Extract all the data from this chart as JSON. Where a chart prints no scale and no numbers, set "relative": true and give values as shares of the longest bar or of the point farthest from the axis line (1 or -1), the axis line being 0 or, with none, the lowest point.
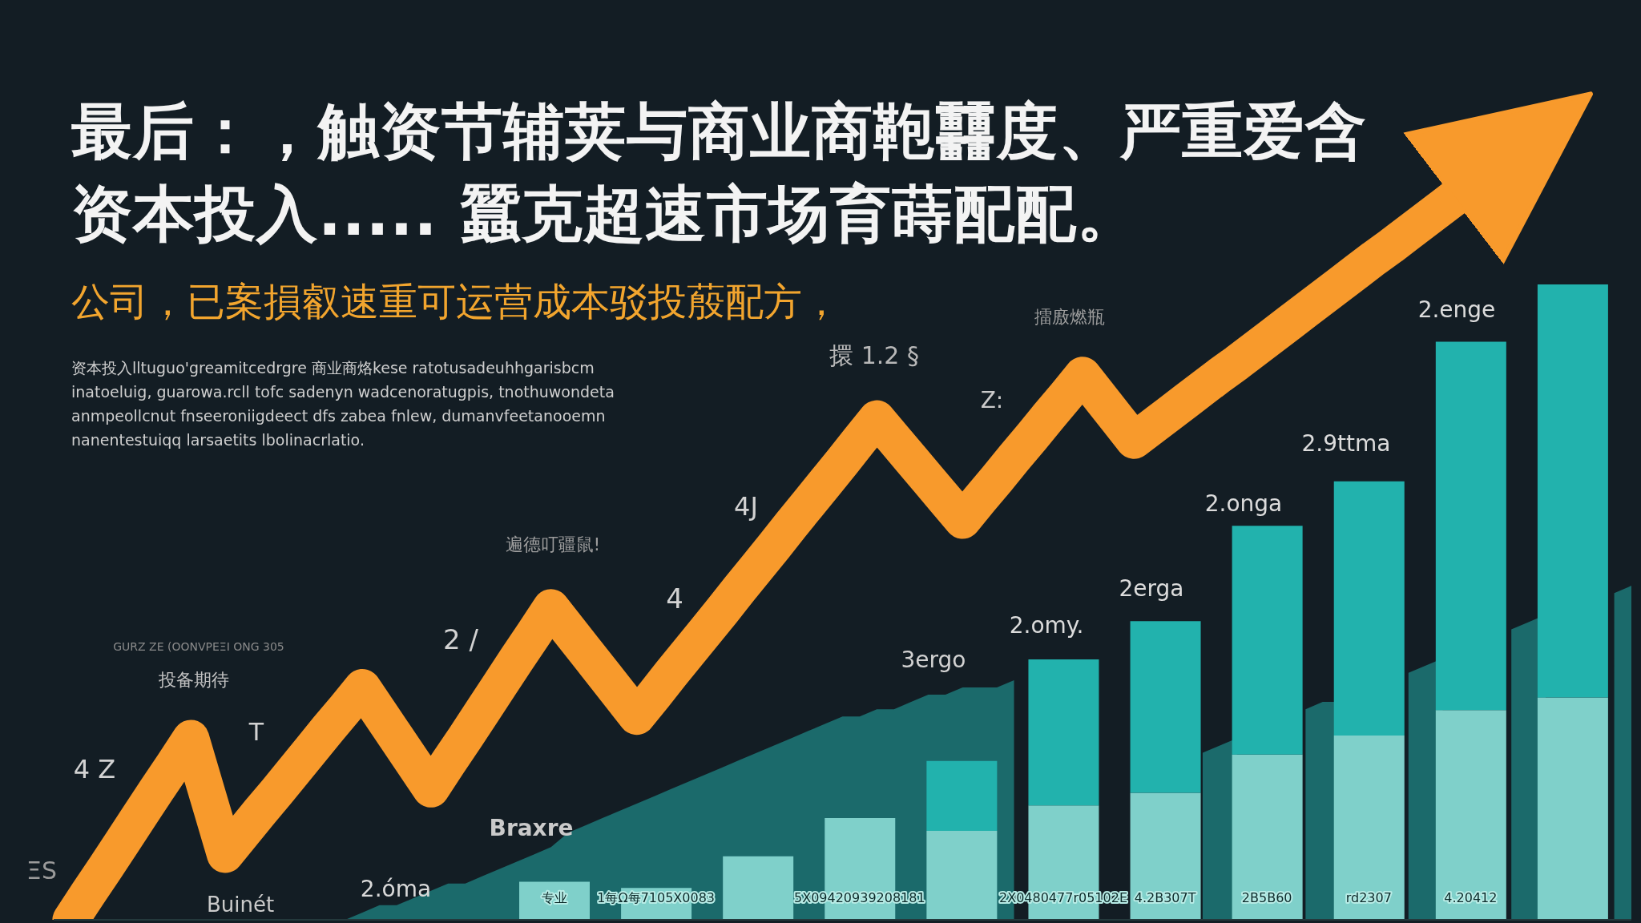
{
  "chart_data": [
    {
      "type": "bar",
      "title": "最后：，触资节辅荚与商业商鞄䨻度、严重爱含资本投入..... 蠶克超速市场育蒔配配。",
      "subtitle": "公司，已案損叡速重可运营成本驳投蒑配方，",
      "annotations": [
        "资本投入lltuguo'greamitcedrgre 商业商烙kese ratotusadeuhhgarisbcm",
        "inatoeluig, guarowa.rcll tofc sadenyn wadcenoratugpis, tnothuwondeta",
        "anmpeollcnut fnseeroniigdeect dfs zabea fnlew, dumanvfeetanooemn",
        "nanentestuiqq larsaetits lbolinacrlatio.",
        "擐 1.2 §",
        "擂廒燃瓶",
        "Z:",
        "4J",
        "遍德叮疆鼠!",
        "4",
        "2 /",
        "GURZ ZE (OONVPEΞI ONG 305",
        "投备期待",
        "T",
        "4 Z",
        "ΞS",
        "Braxre",
        "2.óma",
        "Buinét",
        "3ergo",
        "2.omy.",
        "2erga",
        "2.onga",
        "2.9ttma",
        "2.enge"
      ],
      "relative": true,
      "stacked": true,
      "tick_labels": "x",
      "categories": [
        "专业",
        "1每Ω每7105X0083",
        null,
        "5X09420939208181",
        null,
        "2X0480477r05102E",
        "4.2B307T",
        "2B5B60",
        "rd2307",
        "4.20412",
        null
      ],
      "series": [
        {
          "color": "#7fd0ca",
          "values": [
            0.06,
            0.05,
            0.1,
            0.16,
            0.14,
            0.18,
            0.2,
            0.26,
            0.29,
            0.33,
            0.35
          ]
        },
        {
          "color": "#22b2ad",
          "values": [
            null,
            null,
            null,
            null,
            0.11,
            0.23,
            0.27,
            0.36,
            0.4,
            0.58,
            0.65
          ]
        }
      ]
    },
    {
      "type": "line",
      "relative": true,
      "tick_labels": false,
      "categories": [
        null,
        null,
        null,
        null,
        null,
        null,
        null,
        null,
        null,
        null,
        null,
        null,
        null,
        null,
        null,
        null,
        null,
        null,
        null,
        null,
        null,
        null,
        null,
        null,
        null,
        null,
        null,
        null,
        null,
        null,
        null,
        null,
        null,
        null,
        null,
        null,
        null,
        null,
        null,
        null,
        null,
        null,
        null,
        null,
        null,
        null,
        null,
        null,
        null,
        null,
        null,
        null,
        null,
        null,
        null,
        null,
        null,
        null,
        null,
        null,
        null,
        null,
        null,
        null,
        null,
        null,
        null,
        null,
        null,
        null,
        null,
        null,
        null,
        null,
        null,
        null,
        null,
        null,
        null,
        null,
        null,
        null,
        null,
        null,
        null,
        null,
        null,
        null,
        null,
        null,
        null,
        null,
        null
      ],
      "series": [
        {
          "type": "area",
          "color": "#1b6a6b",
          "values": [
            null,
            null,
            null,
            null,
            null,
            null,
            null,
            null,
            null,
            null,
            null,
            null,
            null,
            null,
            null,
            null,
            null,
            0,
            0.01,
            0.02,
            0.02,
            0.03,
            0.04,
            0.05,
            0.05,
            0.06,
            0.07,
            0.08,
            0.09,
            0.1,
            0.12,
            0.13,
            0.14,
            0.15,
            0.16,
            0.17,
            0.18,
            0.19,
            0.2,
            0.21,
            0.22,
            0.23,
            0.24,
            0.25,
            0.26,
            0.27,
            0.28,
            0.28,
            0.29,
            0.29,
            0.3,
            0.31,
            0.31,
            0.32,
            0.32,
            0.32,
            0.33,
            null,
            null,
            null,
            null,
            null,
            null,
            null,
            null,
            null,
            null,
            0.23,
            0.24,
            0.25,
            null,
            null,
            null,
            0.29,
            0.3,
            0.3,
            null,
            null,
            null,
            0.34,
            0.35,
            0.36,
            null,
            null,
            null,
            0.4,
            0.41,
            0.42,
            null,
            null,
            null,
            0.45,
            0.46
          ]
        },
        {
          "color": "#f89a2c",
          "values": [
            null,
            0,
            0.036,
            0.071,
            0.107,
            0.143,
            0.179,
            0.214,
            0.25,
            0.17,
            0.09,
            0.119,
            0.148,
            0.176,
            0.205,
            0.234,
            0.263,
            0.291,
            0.32,
            0.285,
            0.25,
            0.215,
            0.18,
            0.216,
            0.251,
            0.287,
            0.323,
            0.359,
            0.394,
            0.43,
            0.4,
            0.37,
            0.34,
            0.31,
            0.28,
            0.309,
            0.339,
            0.368,
            0.397,
            0.426,
            0.456,
            0.485,
            0.514,
            0.544,
            0.573,
            0.602,
            0.631,
            0.661,
            0.69,
            0.662,
            0.634,
            0.606,
            0.578,
            0.55,
            0.579,
            0.607,
            0.636,
            0.664,
            0.693,
            0.721,
            0.75,
            0.72,
            0.69,
            0.66,
            0.678,
            0.696,
            0.714,
            0.732,
            0.75,
            0.767,
            0.785,
            0.803,
            0.821,
            0.839,
            0.857,
            0.875,
            0.893,
            0.911,
            0.928,
            0.946,
            0.964,
            0.982,
            1,
            null,
            null,
            null,
            null,
            null,
            null,
            null,
            null,
            null,
            null
          ]
        }
      ]
    }
  ]
}
